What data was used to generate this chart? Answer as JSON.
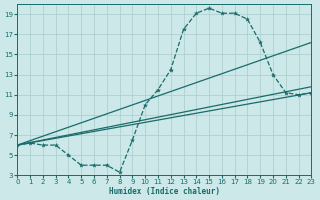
{
  "xlabel": "Humidex (Indice chaleur)",
  "bg_color": "#cce8e8",
  "grid_color": "#aacccc",
  "line_color": "#1a6b6b",
  "xlim": [
    0,
    23
  ],
  "ylim": [
    3,
    20
  ],
  "xticks": [
    0,
    1,
    2,
    3,
    4,
    5,
    6,
    7,
    8,
    9,
    10,
    11,
    12,
    13,
    14,
    15,
    16,
    17,
    18,
    19,
    20,
    21,
    22,
    23
  ],
  "yticks": [
    3,
    5,
    7,
    9,
    11,
    13,
    15,
    17,
    19
  ],
  "line1_x": [
    0,
    1,
    2,
    3,
    4,
    5,
    6,
    7,
    8,
    9,
    10,
    11,
    12,
    13,
    14,
    15,
    16,
    17,
    18,
    19,
    20,
    21,
    22,
    23
  ],
  "line1_y": [
    6,
    6.2,
    6,
    6,
    5,
    4,
    4,
    4,
    3.3,
    6.5,
    10,
    11.5,
    13.5,
    17.5,
    19.1,
    19.6,
    19.1,
    19.1,
    18.5,
    16.2,
    13,
    11.2,
    11,
    11.2
  ],
  "line2_x": [
    0,
    23
  ],
  "line2_y": [
    6,
    16.2
  ],
  "line3_x": [
    0,
    23
  ],
  "line3_y": [
    6,
    11.8
  ],
  "line4_x": [
    0,
    23
  ],
  "line4_y": [
    6,
    11.2
  ]
}
